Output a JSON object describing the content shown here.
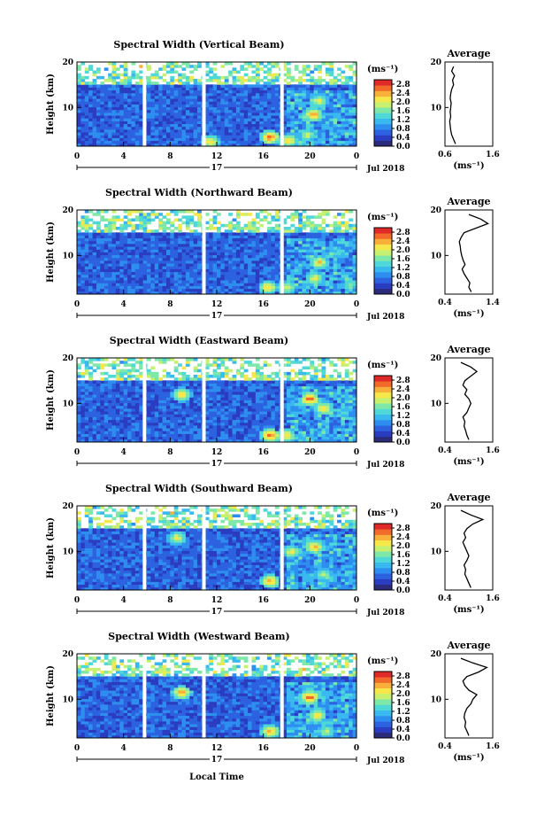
{
  "figure": {
    "xlabel": "Local Time",
    "date_label": "Jul 2018",
    "day_label": "17",
    "x_ticks": [
      "0",
      "4",
      "8",
      "12",
      "16",
      "20",
      "0"
    ],
    "colorbar_unit": "(ms⁻¹)",
    "colorbar_ticks": [
      "0.0",
      "0.4",
      "0.8",
      "1.2",
      "1.6",
      "2.0",
      "2.4",
      "2.8"
    ],
    "colormap": [
      "#2b2b7a",
      "#2a3cc0",
      "#2c62e0",
      "#2e8ef0",
      "#3ab8f0",
      "#4fd8d8",
      "#7ee8a8",
      "#c8f070",
      "#f6e84a",
      "#f8b03a",
      "#f26a2a",
      "#e02a2a"
    ],
    "profile_title": "Average",
    "profile_xlabel": "(ms⁻¹)",
    "ylabel": "Height (km)",
    "y_ticks": [
      "20",
      "10"
    ]
  },
  "chart_data": [
    {
      "type": "heatmap",
      "title": "Spectral Width (Vertical Beam)",
      "ylabel": "Height (km)",
      "xlabel": "Local Time",
      "xlim": [
        0,
        24
      ],
      "ylim": [
        1.5,
        20
      ],
      "clim": [
        0,
        3.0
      ],
      "gaps_hours": [
        5.8,
        10.9,
        17.6
      ],
      "hotspots": [
        {
          "x": 11.4,
          "y": 2.5,
          "v": 2.4
        },
        {
          "x": 16.6,
          "y": 3.5,
          "v": 2.8
        },
        {
          "x": 18.2,
          "y": 2.8,
          "v": 2.4
        },
        {
          "x": 19.8,
          "y": 4.0,
          "v": 2.0
        },
        {
          "x": 20.3,
          "y": 8.5,
          "v": 2.6
        },
        {
          "x": 20.8,
          "y": 11.5,
          "v": 2.2
        }
      ],
      "profile": {
        "xlim": [
          0.6,
          1.6
        ],
        "xticks": [
          "0.6",
          "1.6"
        ],
        "heights": [
          2,
          3,
          4,
          5,
          6,
          7,
          8,
          9,
          10,
          11,
          12,
          13,
          14,
          15,
          16,
          17,
          18,
          19
        ],
        "values": [
          0.82,
          0.78,
          0.74,
          0.72,
          0.71,
          0.7,
          0.72,
          0.71,
          0.72,
          0.73,
          0.71,
          0.72,
          0.74,
          0.78,
          0.76,
          0.8,
          0.74,
          0.78
        ]
      }
    },
    {
      "type": "heatmap",
      "title": "Spectral Width (Northward Beam)",
      "ylabel": "Height (km)",
      "xlabel": "Local Time",
      "xlim": [
        0,
        24
      ],
      "ylim": [
        1.5,
        20
      ],
      "clim": [
        0,
        3.0
      ],
      "gaps_hours": [
        10.9,
        17.6
      ],
      "hotspots": [
        {
          "x": 16.4,
          "y": 3.0,
          "v": 2.4
        },
        {
          "x": 18.0,
          "y": 3.0,
          "v": 2.2
        },
        {
          "x": 20.4,
          "y": 5.0,
          "v": 2.2
        },
        {
          "x": 20.8,
          "y": 8.5,
          "v": 2.4
        }
      ],
      "profile": {
        "xlim": [
          0.4,
          1.4
        ],
        "xticks": [
          "0.4",
          "1.4"
        ],
        "heights": [
          2,
          3,
          4,
          5,
          6,
          7,
          8,
          9,
          10,
          11,
          12,
          13,
          14,
          15,
          16,
          17,
          18,
          19
        ],
        "values": [
          0.95,
          0.9,
          0.92,
          0.86,
          0.8,
          0.76,
          0.82,
          0.78,
          0.75,
          0.73,
          0.72,
          0.7,
          0.74,
          0.8,
          1.05,
          1.3,
          1.15,
          0.9
        ]
      }
    },
    {
      "type": "heatmap",
      "title": "Spectral Width (Eastward Beam)",
      "ylabel": "Height (km)",
      "xlabel": "Local Time",
      "xlim": [
        0,
        24
      ],
      "ylim": [
        1.5,
        20
      ],
      "clim": [
        0,
        3.0
      ],
      "gaps_hours": [
        5.8,
        10.9,
        17.6
      ],
      "hotspots": [
        {
          "x": 9.0,
          "y": 12.0,
          "v": 2.4
        },
        {
          "x": 16.6,
          "y": 3.0,
          "v": 2.8
        },
        {
          "x": 18.0,
          "y": 3.0,
          "v": 2.4
        },
        {
          "x": 20.0,
          "y": 11.0,
          "v": 2.8
        },
        {
          "x": 21.2,
          "y": 9.0,
          "v": 2.4
        }
      ],
      "profile": {
        "xlim": [
          0.4,
          1.6
        ],
        "xticks": [
          "0.4",
          "1.6"
        ],
        "heights": [
          2,
          3,
          4,
          5,
          6,
          7,
          8,
          9,
          10,
          11,
          12,
          13,
          14,
          15,
          16,
          17,
          18,
          19
        ],
        "values": [
          1.0,
          0.95,
          0.92,
          0.88,
          0.9,
          0.85,
          0.95,
          1.0,
          1.05,
          1.0,
          0.9,
          0.95,
          0.85,
          0.9,
          1.05,
          1.2,
          1.05,
          0.8
        ]
      }
    },
    {
      "type": "heatmap",
      "title": "Spectral Width (Southward Beam)",
      "ylabel": "Height (km)",
      "xlabel": "Local Time",
      "xlim": [
        0,
        24
      ],
      "ylim": [
        1.5,
        20
      ],
      "clim": [
        0,
        3.0
      ],
      "gaps_hours": [
        5.8,
        10.9,
        17.6
      ],
      "hotspots": [
        {
          "x": 8.6,
          "y": 13.0,
          "v": 2.2
        },
        {
          "x": 16.6,
          "y": 3.5,
          "v": 2.6
        },
        {
          "x": 18.4,
          "y": 10.0,
          "v": 2.2
        },
        {
          "x": 20.4,
          "y": 11.0,
          "v": 2.6
        },
        {
          "x": 21.2,
          "y": 5.0,
          "v": 2.0
        }
      ],
      "profile": {
        "xlim": [
          0.4,
          1.6
        ],
        "xticks": [
          "0.4",
          "1.6"
        ],
        "heights": [
          2,
          3,
          4,
          5,
          6,
          7,
          8,
          9,
          10,
          11,
          12,
          13,
          14,
          15,
          16,
          17,
          18,
          19
        ],
        "values": [
          1.05,
          1.0,
          0.95,
          0.9,
          0.92,
          0.88,
          0.95,
          1.0,
          0.95,
          0.9,
          0.85,
          0.92,
          0.88,
          0.95,
          1.1,
          1.35,
          1.05,
          0.8
        ]
      }
    },
    {
      "type": "heatmap",
      "title": "Spectral Width (Westward Beam)",
      "ylabel": "Height (km)",
      "xlabel": "Local Time",
      "xlim": [
        0,
        24
      ],
      "ylim": [
        1.5,
        20
      ],
      "clim": [
        0,
        3.0
      ],
      "gaps_hours": [
        5.8,
        10.9,
        17.6
      ],
      "hotspots": [
        {
          "x": 9.0,
          "y": 11.5,
          "v": 2.6
        },
        {
          "x": 16.6,
          "y": 3.0,
          "v": 2.6
        },
        {
          "x": 20.0,
          "y": 10.5,
          "v": 2.8
        },
        {
          "x": 20.6,
          "y": 6.5,
          "v": 2.4
        },
        {
          "x": 21.4,
          "y": 3.0,
          "v": 2.0
        }
      ],
      "profile": {
        "xlim": [
          0.4,
          1.6
        ],
        "xticks": [
          "0.4",
          "1.6"
        ],
        "heights": [
          2,
          3,
          4,
          5,
          6,
          7,
          8,
          9,
          10,
          11,
          12,
          13,
          14,
          15,
          16,
          17,
          18,
          19
        ],
        "values": [
          1.0,
          0.95,
          0.9,
          0.92,
          0.88,
          0.9,
          0.95,
          1.05,
          1.1,
          1.2,
          1.0,
          0.9,
          0.85,
          0.95,
          1.25,
          1.45,
          1.1,
          0.8
        ]
      }
    }
  ]
}
